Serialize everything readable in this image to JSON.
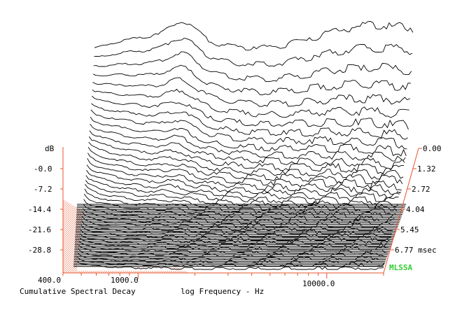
{
  "chart_data": {
    "type": "waterfall",
    "title": "Cumulative Spectral Decay",
    "xlabel": "log Frequency - Hz",
    "ylabel": "dB",
    "zlabel": "msec",
    "x_scale": "log",
    "xlim": [
      400,
      20000
    ],
    "ylim": [
      -36,
      7.2
    ],
    "zlim": [
      0,
      6.77
    ],
    "x_ticks": [
      "400.0",
      "1000.0",
      "10000.0"
    ],
    "y_ticks": [
      "-0.0",
      "-7.2",
      "-14.4",
      "-21.6",
      "-28.8"
    ],
    "y_tick_values": [
      0,
      -7.2,
      -14.4,
      -21.6,
      -28.8
    ],
    "z_ticks": [
      "0.00",
      "1.32",
      "2.72",
      "4.04",
      "5.45",
      "6.77 msec"
    ],
    "z_tick_values": [
      0,
      1.32,
      2.72,
      4.04,
      5.45,
      6.77
    ],
    "slice_count": 40,
    "brand": "MLSSA",
    "colors": {
      "axis": "#e8542e",
      "trace": "#000000",
      "brand": "#33cc33",
      "hatch": "#e8542e"
    }
  }
}
